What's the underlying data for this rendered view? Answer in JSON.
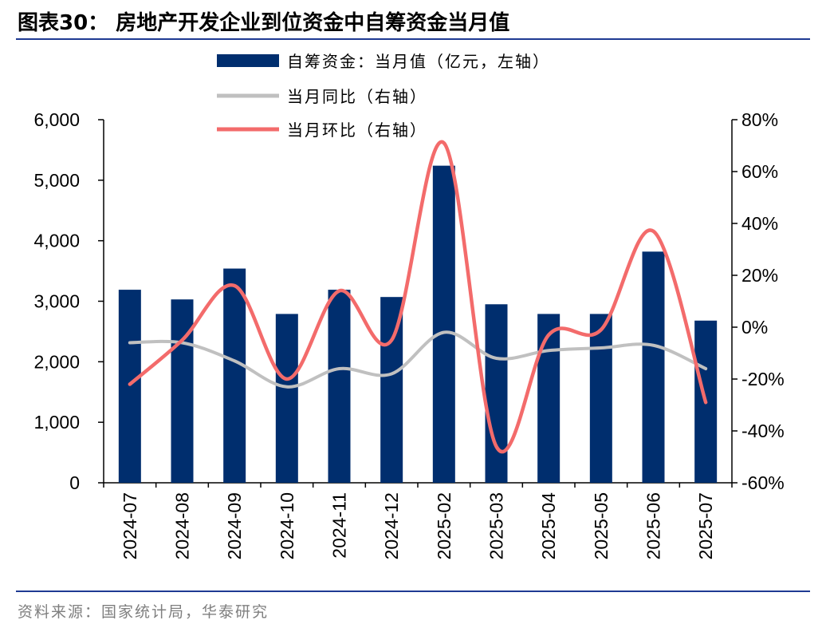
{
  "title": "图表30：  房地产开发企业到位资金中自筹资金当月值",
  "source": "资料来源：国家统计局，华泰研究",
  "chart_data": {
    "type": "bar",
    "categories": [
      "2024-07",
      "2024-08",
      "2024-09",
      "2024-10",
      "2024-11",
      "2024-12",
      "2025-02",
      "2025-03",
      "2025-04",
      "2025-05",
      "2025-06",
      "2025-07"
    ],
    "series": [
      {
        "name": "自筹资金：当月值（亿元，左轴）",
        "type": "bar",
        "axis": "left",
        "color": "#002e6e",
        "values": [
          3190,
          3030,
          3540,
          2790,
          3190,
          3070,
          5240,
          2950,
          2790,
          2790,
          3820,
          2680
        ]
      },
      {
        "name": "当月同比（右轴）",
        "type": "line",
        "axis": "right",
        "color": "#c0c0c0",
        "values": [
          -6,
          -6,
          -13,
          -23,
          -16,
          -18,
          -2,
          -12,
          -9,
          -8,
          -7,
          -16
        ]
      },
      {
        "name": "当月环比（右轴）",
        "type": "line",
        "axis": "right",
        "color": "#f36b6b",
        "values": [
          -22,
          -5,
          16,
          -20,
          14,
          -5,
          71,
          -46,
          -3,
          -1,
          37,
          -29
        ]
      }
    ],
    "ylim_left": [
      0,
      6000
    ],
    "ylim_right": [
      -60,
      80
    ],
    "yticks_left": [
      "0",
      "1,000",
      "2,000",
      "3,000",
      "4,000",
      "5,000",
      "6,000"
    ],
    "yticks_right": [
      "-60%",
      "-40%",
      "-20%",
      "0%",
      "20%",
      "40%",
      "60%",
      "80%"
    ],
    "grid": false,
    "legend_position": "top-center"
  }
}
